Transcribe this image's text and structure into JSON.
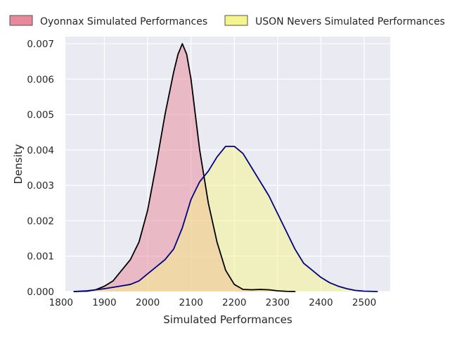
{
  "chart_data": {
    "type": "area",
    "chart_kind": "kde-density",
    "xlabel": "Simulated Performances",
    "ylabel": "Density",
    "xlim": [
      1810,
      2560
    ],
    "ylim": [
      0,
      0.0072
    ],
    "x_ticks": [
      1800,
      1900,
      2000,
      2100,
      2200,
      2300,
      2400,
      2500
    ],
    "x_tick_labels": [
      "1800",
      "1900",
      "2000",
      "2100",
      "2200",
      "2300",
      "2400",
      "2500"
    ],
    "y_ticks": [
      0,
      0.001,
      0.002,
      0.003,
      0.004,
      0.005,
      0.006,
      0.007
    ],
    "y_tick_labels": [
      "0.000",
      "0.001",
      "0.002",
      "0.003",
      "0.004",
      "0.005",
      "0.006",
      "0.007"
    ],
    "grid": true,
    "legend_position": "top",
    "series": [
      {
        "name": "Oyonnax Simulated Performances",
        "fill_color": "#e8889a",
        "line_color": "#000000",
        "x": [
          1830,
          1860,
          1880,
          1900,
          1920,
          1940,
          1960,
          1980,
          2000,
          2020,
          2040,
          2060,
          2070,
          2080,
          2090,
          2100,
          2110,
          2120,
          2140,
          2160,
          2180,
          2200,
          2220,
          2240,
          2260,
          2280,
          2300,
          2320,
          2340
        ],
        "y": [
          0,
          1e-05,
          5e-05,
          0.00015,
          0.0003,
          0.0006,
          0.0009,
          0.0014,
          0.0023,
          0.0036,
          0.005,
          0.0062,
          0.0067,
          0.007,
          0.0067,
          0.006,
          0.005,
          0.004,
          0.0025,
          0.0014,
          0.0006,
          0.0002,
          6e-05,
          5e-05,
          6e-05,
          5e-05,
          2e-05,
          5e-06,
          0
        ]
      },
      {
        "name": "USON Nevers Simulated Performances",
        "fill_color": "#f5f58a",
        "line_color": "#000080",
        "x": [
          1830,
          1860,
          1880,
          1900,
          1920,
          1940,
          1960,
          1980,
          2000,
          2020,
          2040,
          2060,
          2080,
          2100,
          2120,
          2140,
          2160,
          2180,
          2200,
          2220,
          2240,
          2260,
          2280,
          2300,
          2320,
          2340,
          2360,
          2380,
          2400,
          2420,
          2440,
          2460,
          2480,
          2500,
          2530
        ],
        "y": [
          0,
          2e-05,
          5e-05,
          8e-05,
          0.00012,
          0.00016,
          0.0002,
          0.0003,
          0.0005,
          0.0007,
          0.0009,
          0.0012,
          0.0018,
          0.0026,
          0.0031,
          0.0034,
          0.0038,
          0.0041,
          0.0041,
          0.0039,
          0.0035,
          0.0031,
          0.0027,
          0.0022,
          0.0017,
          0.0012,
          0.0008,
          0.0006,
          0.0004,
          0.00025,
          0.00015,
          8e-05,
          3e-05,
          1e-05,
          0
        ]
      }
    ]
  }
}
